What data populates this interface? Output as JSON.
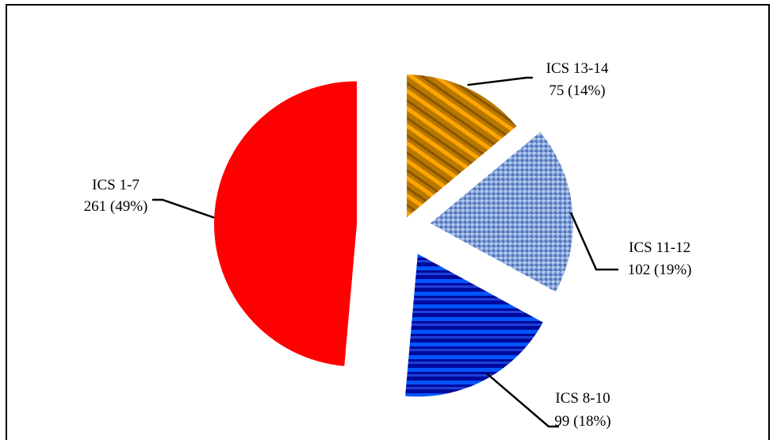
{
  "chart_data": {
    "type": "pie",
    "title": "",
    "exploded": true,
    "label_format": "{name}\n{value} ({percent})",
    "slices": [
      {
        "name": "ICS 13-14",
        "value": 75,
        "percent": "14%",
        "colors": [
          "#b87800",
          "#ffa500"
        ],
        "pattern": "diagonal-stripes"
      },
      {
        "name": "ICS 11-12",
        "value": 102,
        "percent": "19%",
        "colors": [
          "#5f86c6",
          "#b5c8ec"
        ],
        "pattern": "fabric-texture"
      },
      {
        "name": "ICS 8-10",
        "value": 99,
        "percent": "18%",
        "colors": [
          "#000a9c",
          "#0055ff"
        ],
        "pattern": "horizontal-stripes"
      },
      {
        "name": "ICS 1-7",
        "value": 261,
        "percent": "49%",
        "colors": [
          "#ff0000"
        ],
        "pattern": "solid"
      }
    ]
  }
}
